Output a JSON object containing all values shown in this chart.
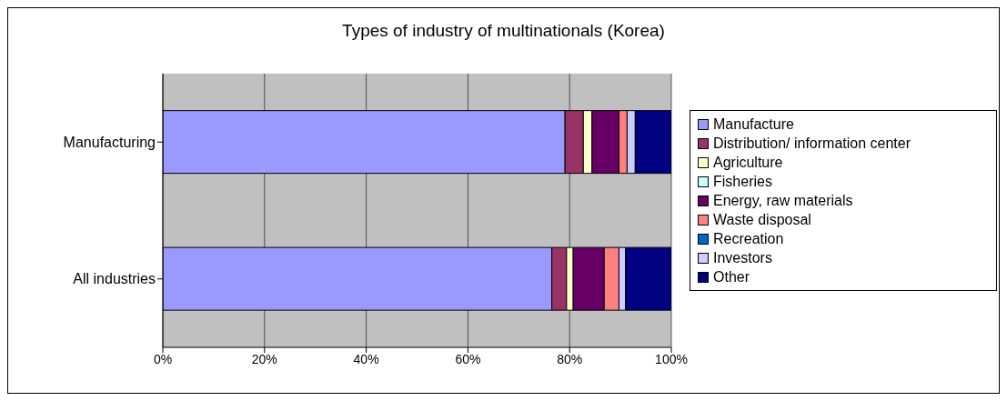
{
  "chart_data": {
    "type": "bar",
    "orientation": "horizontal",
    "stacked": true,
    "title": "Types of industry of multinationals (Korea)",
    "categories": [
      "Manufacturing",
      "All industries"
    ],
    "series": [
      {
        "name": "Manufacture",
        "color": "#9999ff",
        "values": [
          79.1,
          76.5
        ]
      },
      {
        "name": "Distribution/ information center",
        "color": "#993366",
        "values": [
          3.6,
          2.9
        ]
      },
      {
        "name": "Agriculture",
        "color": "#ffffcc",
        "values": [
          1.7,
          1.3
        ]
      },
      {
        "name": "Fisheries",
        "color": "#ccffff",
        "values": [
          0,
          0
        ]
      },
      {
        "name": "Energy, raw materials",
        "color": "#660066",
        "values": [
          5.3,
          6.1
        ]
      },
      {
        "name": "Waste disposal",
        "color": "#ff8080",
        "values": [
          1.6,
          2.9
        ]
      },
      {
        "name": "Recreation",
        "color": "#0066cc",
        "values": [
          0,
          0
        ]
      },
      {
        "name": "Investors",
        "color": "#ccccff",
        "values": [
          1.6,
          1.3
        ]
      },
      {
        "name": "Other",
        "color": "#000080",
        "values": [
          7.1,
          9.0
        ]
      }
    ],
    "xlim": [
      0,
      100
    ],
    "xticks": [
      {
        "value": 0,
        "label": "0%"
      },
      {
        "value": 20,
        "label": "20%"
      },
      {
        "value": 40,
        "label": "40%"
      },
      {
        "value": 60,
        "label": "60%"
      },
      {
        "value": 80,
        "label": "80%"
      },
      {
        "value": 100,
        "label": "100%"
      }
    ],
    "grid": "x",
    "legend": "right"
  }
}
